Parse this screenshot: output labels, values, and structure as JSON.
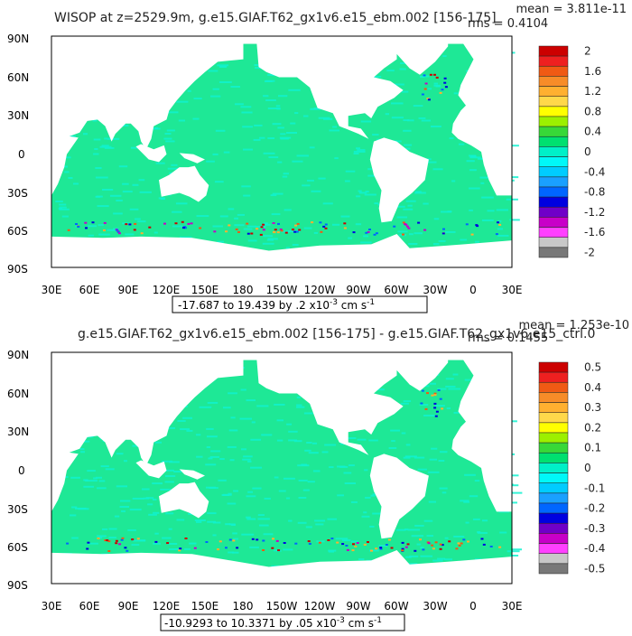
{
  "chart_data": [
    {
      "type": "heatmap",
      "title": "WISOP at z=2529.9m, g.e15.GIAF.T62_gx1v6.e15_ebm.002 [156-175]",
      "stats": {
        "mean": "mean = 3.811e-11",
        "rms": "rms = 0.4104"
      },
      "range_label": "-17.687 to 19.439 by .2 x10",
      "range_exp": "-3",
      "range_units": " cm s",
      "range_units_exp": "-1",
      "xticks": [
        "30E",
        "60E",
        "90E",
        "120E",
        "150E",
        "180",
        "150W",
        "120W",
        "90W",
        "60W",
        "30W",
        "0",
        "30E"
      ],
      "yticks": [
        "90N",
        "60N",
        "30N",
        "0",
        "30S",
        "60S",
        "90S"
      ],
      "colorbar": {
        "labels": [
          "2",
          "1.6",
          "1.2",
          "0.8",
          "0.4",
          "0",
          "-0.4",
          "-0.8",
          "-1.2",
          "-1.6",
          "-2"
        ]
      }
    },
    {
      "type": "heatmap",
      "title": "g.e15.GIAF.T62_gx1v6.e15_ebm.002 [156-175] - g.e15.GIAF.T62_gx1v6.e15_ctrl.0",
      "stats": {
        "mean": "mean = 1.253e-10",
        "rms": "rms = 0.1455"
      },
      "range_label": "-10.9293 to 10.3371 by .05 x10",
      "range_exp": "-3",
      "range_units": " cm s",
      "range_units_exp": "-1",
      "xticks": [
        "30E",
        "60E",
        "90E",
        "120E",
        "150E",
        "180",
        "150W",
        "120W",
        "90W",
        "60W",
        "30W",
        "0",
        "30E"
      ],
      "yticks": [
        "90N",
        "60N",
        "30N",
        "0",
        "30S",
        "60S",
        "90S"
      ],
      "colorbar": {
        "labels": [
          "0.5",
          "0.4",
          "0.3",
          "0.2",
          "0.1",
          "0",
          "-0.1",
          "-0.2",
          "-0.3",
          "-0.4",
          "-0.5"
        ]
      }
    }
  ],
  "colors": {
    "scale": [
      "#cc0000",
      "#ee2020",
      "#f05a14",
      "#f78c28",
      "#ffb030",
      "#ffd84a",
      "#ffff00",
      "#9cf000",
      "#38d838",
      "#00e070",
      "#00f0c8",
      "#00f8f8",
      "#00ccff",
      "#1aa0ff",
      "#0066ff",
      "#0000e0",
      "#7000c8",
      "#c800c8",
      "#ff40ff",
      "#c8c8c8",
      "#787878"
    ],
    "ocean_base": "#1ee896",
    "ocean_alt": "#10f2d0",
    "land": "#ffffff"
  }
}
